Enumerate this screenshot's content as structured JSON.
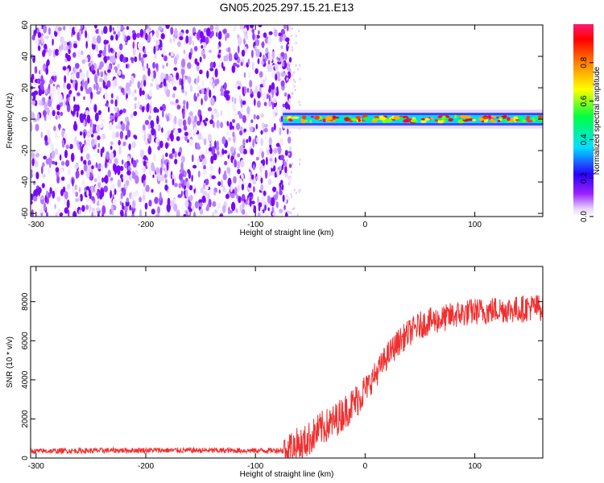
{
  "title": "GN05.2025.297.15.21.E13",
  "chart_data": [
    {
      "type": "heatmap",
      "xlabel": "Height of straight line (km)",
      "ylabel": "Frequency (Hz)",
      "xlim": [
        -305,
        162
      ],
      "ylim": [
        -62,
        60
      ],
      "x_ticks": [
        -300,
        -200,
        -100,
        0,
        100
      ],
      "y_ticks": [
        -60,
        -40,
        -20,
        0,
        20,
        40,
        60
      ],
      "noise_region_x": [
        -305,
        -68
      ],
      "signal_band": {
        "x": [
          -75,
          162
        ],
        "frequency_center": 0,
        "half_width": 4
      },
      "colorbar": {
        "label": "Normalized spectral amplitude",
        "range": [
          0,
          1
        ],
        "ticks": [
          0.0,
          0.2,
          0.4,
          0.6,
          0.8
        ],
        "colormap": [
          "#ffffff",
          "#e0c8ff",
          "#8a00ff",
          "#0000ff",
          "#00ffff",
          "#00ff00",
          "#ffff00",
          "#ff8000",
          "#ff0000",
          "#ff0066"
        ]
      },
      "grid": false
    },
    {
      "type": "line",
      "xlabel": "Height of straight line (km)",
      "ylabel": "SNR (10 * v/v)",
      "xlim": [
        -305,
        162
      ],
      "ylim": [
        0,
        9800
      ],
      "x_ticks": [
        -300,
        -200,
        -100,
        0,
        100
      ],
      "y_ticks": [
        0,
        2000,
        4000,
        6000,
        8000
      ],
      "grid": false,
      "series": [
        {
          "color": "#f03030",
          "x": [
            -305,
            -250,
            -200,
            -150,
            -100,
            -75,
            -55,
            -40,
            -30,
            -20,
            -10,
            0,
            10,
            20,
            30,
            40,
            50,
            60,
            70,
            80,
            90,
            100,
            110,
            120,
            130,
            140,
            150,
            162
          ],
          "y": [
            350,
            380,
            400,
            390,
            380,
            400,
            800,
            1500,
            1800,
            2300,
            2800,
            3500,
            4300,
            5200,
            5900,
            6400,
            6800,
            7000,
            7100,
            7300,
            7400,
            7500,
            7500,
            7600,
            7600,
            7600,
            7700,
            7700
          ]
        }
      ]
    }
  ]
}
